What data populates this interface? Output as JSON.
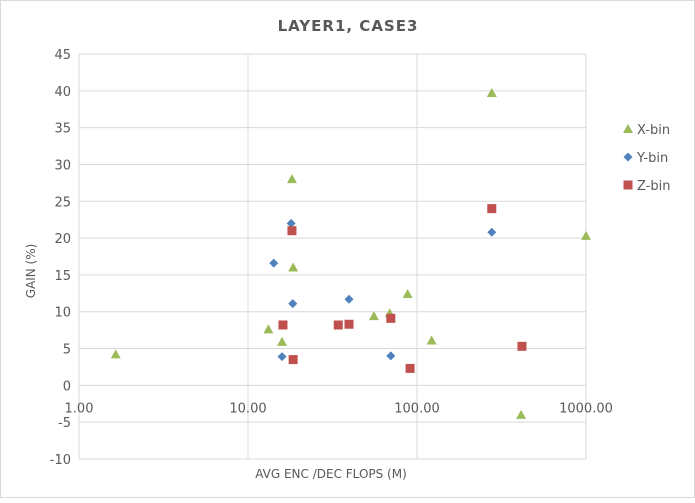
{
  "chart_data": {
    "type": "scatter",
    "title": "LAYER1, CASE3",
    "xlabel": "AVG ENC /DEC FLOPS (M)",
    "ylabel": "GAIN (%)",
    "xscale": "log",
    "xlim": [
      1,
      1000
    ],
    "ylim": [
      -10,
      45
    ],
    "x_ticks": [
      "1.00",
      "10.00",
      "100.00",
      "1000.00"
    ],
    "y_ticks": [
      45,
      40,
      35,
      30,
      25,
      20,
      15,
      10,
      5,
      0,
      -5,
      -10
    ],
    "grid": true,
    "legend_position": "right",
    "series": [
      {
        "name": "X-bin",
        "marker": "triangle",
        "color": "#9bbb59",
        "points": [
          [
            1.65,
            4.2
          ],
          [
            13.2,
            7.6
          ],
          [
            15.9,
            5.9
          ],
          [
            18.2,
            28.0
          ],
          [
            18.5,
            16.0
          ],
          [
            55.6,
            9.4
          ],
          [
            69.0,
            9.8
          ],
          [
            88.0,
            12.4
          ],
          [
            122.0,
            6.1
          ],
          [
            277.0,
            39.7
          ],
          [
            413.0,
            -4.0
          ],
          [
            1000.0,
            20.3
          ]
        ]
      },
      {
        "name": "Y-bin",
        "marker": "diamond",
        "color": "#4f81bd",
        "points": [
          [
            14.2,
            16.6
          ],
          [
            18.0,
            22.0
          ],
          [
            18.4,
            11.1
          ],
          [
            15.9,
            3.9
          ],
          [
            39.6,
            11.7
          ],
          [
            70.0,
            4.0
          ],
          [
            277.0,
            20.8
          ]
        ]
      },
      {
        "name": "Z-bin",
        "marker": "square",
        "color": "#c0504d",
        "points": [
          [
            16.1,
            8.2
          ],
          [
            18.2,
            21.0
          ],
          [
            18.5,
            3.5
          ],
          [
            34.2,
            8.2
          ],
          [
            39.6,
            8.3
          ],
          [
            70.0,
            9.1
          ],
          [
            91.0,
            2.3
          ],
          [
            277.0,
            24.0
          ],
          [
            418.0,
            5.3
          ]
        ]
      }
    ]
  }
}
